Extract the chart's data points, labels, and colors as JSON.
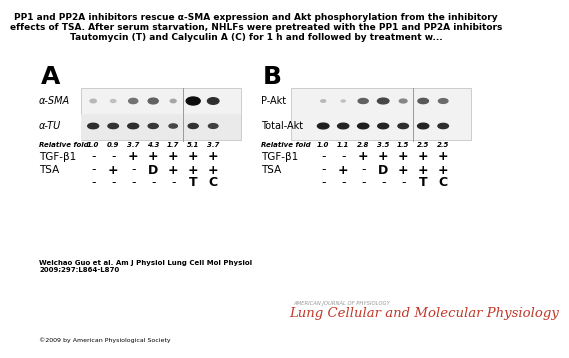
{
  "title_line1": "PP1 and PP2A inhibitors rescue α-SMA expression and Akt phosphorylation from the inhibitory",
  "title_line2": "effects of TSA. After serum starvation, NHLFs were pretreated with the PP1 and PP2A inhibitors",
  "title_line3": "Tautomycin (T) and Calyculin A (C) for 1 h and followed by treatment w...",
  "panel_A_label": "A",
  "panel_B_label": "B",
  "panel_A": {
    "alpha_SMA_label": "α-SMA",
    "alpha_TU_label": "α-TU",
    "relative_fold_label": "Relative fold",
    "relative_fold_values": [
      "1.0",
      "0.9",
      "3.7",
      "4.3",
      "1.7",
      "5.1",
      "3.7"
    ],
    "TGF_label": "TGF-β1",
    "TGF_values": [
      "-",
      "-",
      "+",
      "+",
      "+",
      "+",
      "+"
    ],
    "TSA_label": "TSA",
    "TSA_values": [
      "-",
      "+",
      "-",
      "D",
      "+",
      "+",
      "+"
    ],
    "inhibitor_values": [
      "-",
      "-",
      "-",
      "-",
      "-",
      "T",
      "C"
    ],
    "sma_band_sizes": [
      0.45,
      0.38,
      0.65,
      0.72,
      0.42,
      1.0,
      0.82
    ],
    "sma_band_darkness": [
      0.72,
      0.75,
      0.45,
      0.38,
      0.65,
      0.05,
      0.18
    ],
    "tu_band_sizes": [
      0.78,
      0.75,
      0.78,
      0.72,
      0.6,
      0.72,
      0.68
    ],
    "tu_band_darkness": [
      0.18,
      0.2,
      0.18,
      0.22,
      0.28,
      0.2,
      0.25
    ]
  },
  "panel_B": {
    "P_Akt_label": "P-Akt",
    "Total_Akt_label": "Total-Akt",
    "relative_fold_label": "Relative fold",
    "relative_fold_values": [
      "1.0",
      "1.1",
      "2.8",
      "3.5",
      "1.5",
      "2.5",
      "2.5"
    ],
    "TGF_label": "TGF-β1",
    "TGF_values": [
      "-",
      "-",
      "+",
      "+",
      "+",
      "+",
      "+"
    ],
    "TSA_label": "TSA",
    "TSA_values": [
      "-",
      "+",
      "-",
      "D",
      "+",
      "+",
      "+"
    ],
    "inhibitor_values": [
      "-",
      "-",
      "-",
      "-",
      "-",
      "T",
      "C"
    ],
    "pakt_band_sizes": [
      0.35,
      0.3,
      0.72,
      0.82,
      0.55,
      0.75,
      0.68
    ],
    "pakt_band_darkness": [
      0.72,
      0.75,
      0.38,
      0.28,
      0.52,
      0.35,
      0.42
    ],
    "takt_band_sizes": [
      0.82,
      0.8,
      0.8,
      0.78,
      0.75,
      0.8,
      0.75
    ],
    "takt_band_darkness": [
      0.12,
      0.14,
      0.12,
      0.14,
      0.18,
      0.14,
      0.18
    ]
  },
  "citation": "Weichao Guo et al. Am J Physiol Lung Cell Mol Physiol\n2009;297:L864-L870",
  "copyright": "©2009 by American Physiological Society",
  "journal_small": "AMERICAN JOURNAL OF PHYSIOLOGY",
  "journal_large": "Lung Cellular and Molecular Physiology",
  "bg_color": "#ffffff",
  "text_color": "#000000",
  "gray_light": "#cccccc",
  "divider_color": "#999999",
  "journal_red": "#c0392b"
}
